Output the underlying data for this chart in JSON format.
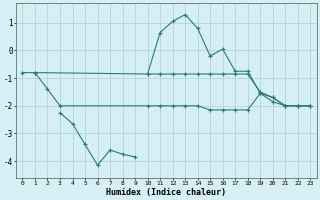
{
  "background_color": "#d6eff5",
  "grid_color": "#b8d8de",
  "line_color": "#2a7a7a",
  "xlabel": "Humidex (Indice chaleur)",
  "ylim": [
    -4.6,
    1.7
  ],
  "xlim": [
    -0.5,
    23.5
  ],
  "yticks": [
    -4,
    -3,
    -2,
    -1,
    0,
    1
  ],
  "xticks": [
    0,
    1,
    2,
    3,
    4,
    5,
    6,
    7,
    8,
    9,
    10,
    11,
    12,
    13,
    14,
    15,
    16,
    17,
    18,
    19,
    20,
    21,
    22,
    23
  ],
  "line1_x": [
    0,
    1,
    10,
    11,
    12,
    13,
    14,
    15,
    16,
    17,
    18,
    19,
    20,
    21,
    22,
    23
  ],
  "line1_y": [
    -0.8,
    -0.8,
    -0.85,
    -0.85,
    -0.85,
    -0.85,
    -0.85,
    -0.85,
    -0.85,
    -0.85,
    -0.85,
    -1.5,
    -1.7,
    -2.0,
    -2.0,
    -2.0
  ],
  "line2_x": [
    1,
    2,
    3,
    10,
    11,
    12,
    13,
    14,
    15,
    16,
    17,
    18,
    19,
    20,
    21,
    22,
    23
  ],
  "line2_y": [
    -0.8,
    -1.4,
    -2.0,
    -2.0,
    -2.0,
    -2.0,
    -2.0,
    -2.0,
    -2.15,
    -2.15,
    -2.15,
    -2.15,
    -1.55,
    -1.85,
    -2.0,
    -2.0,
    -2.0
  ],
  "line3_x": [
    3,
    4,
    5,
    6,
    7,
    8,
    9
  ],
  "line3_y": [
    -2.25,
    -2.65,
    -3.4,
    -4.15,
    -3.6,
    -3.75,
    -3.85
  ],
  "line4_x": [
    10,
    11,
    12,
    13,
    14,
    15,
    16,
    17,
    18,
    19,
    20,
    21,
    22,
    23
  ],
  "line4_y": [
    -0.85,
    0.65,
    1.05,
    1.3,
    0.8,
    -0.2,
    0.05,
    -0.75,
    -0.75,
    -1.55,
    -1.7,
    -2.0,
    -2.0,
    -2.0
  ]
}
